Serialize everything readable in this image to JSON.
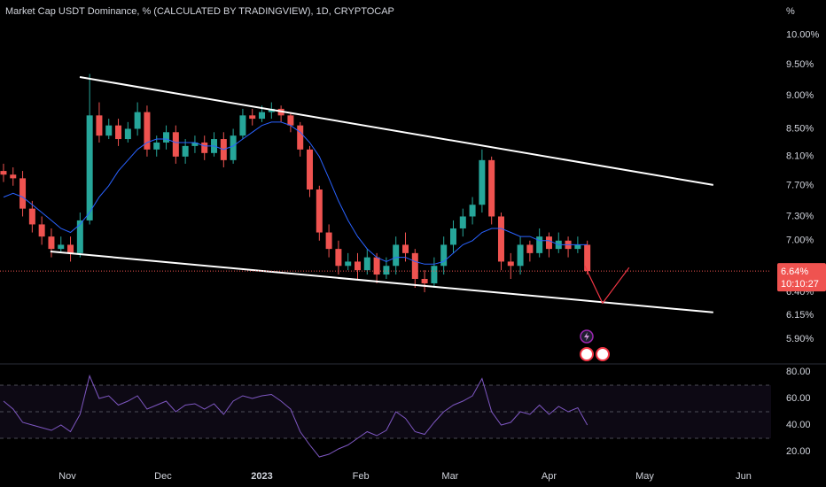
{
  "chart_data": [
    {
      "type": "candlestick",
      "title": "Market Cap USDT Dominance, % (CALCULATED BY TRADINGVIEW), 1D, CRYPTOCAP",
      "y_unit": "%",
      "log_scale": true,
      "up_color": "#26a69a",
      "down_color": "#ef5350",
      "x": [
        -20,
        -17,
        -14,
        -11,
        -8,
        -5,
        -2,
        1,
        4,
        7,
        10,
        13,
        16,
        19,
        22,
        25,
        28,
        31,
        34,
        37,
        40,
        43,
        46,
        49,
        52,
        55,
        58,
        61,
        64,
        67,
        70,
        73,
        76,
        79,
        82,
        85,
        88,
        91,
        94,
        97,
        100,
        103,
        106,
        109,
        112,
        115,
        118,
        121,
        124,
        127,
        130,
        133,
        136,
        139,
        142,
        145,
        148,
        151,
        154,
        157,
        160,
        163
      ],
      "open": [
        7.9,
        7.85,
        7.8,
        7.4,
        7.2,
        7.05,
        6.9,
        6.95,
        6.85,
        7.25,
        8.7,
        8.4,
        8.55,
        8.35,
        8.5,
        8.75,
        8.2,
        8.3,
        8.45,
        8.1,
        8.25,
        8.3,
        8.15,
        8.35,
        8.05,
        8.4,
        8.7,
        8.65,
        8.75,
        8.8,
        8.7,
        8.55,
        8.2,
        7.65,
        7.1,
        6.9,
        6.7,
        6.75,
        6.65,
        6.8,
        6.6,
        6.7,
        6.95,
        6.85,
        6.55,
        6.5,
        6.7,
        6.95,
        7.15,
        7.3,
        7.45,
        8.05,
        7.3,
        6.75,
        6.7,
        6.95,
        6.85,
        7.05,
        6.9,
        7.0,
        6.9,
        6.95
      ],
      "high": [
        8.0,
        7.95,
        7.9,
        7.5,
        7.3,
        7.15,
        7.05,
        7.05,
        7.35,
        9.35,
        8.9,
        8.65,
        8.65,
        8.6,
        8.9,
        8.85,
        8.4,
        8.55,
        8.55,
        8.35,
        8.4,
        8.4,
        8.45,
        8.45,
        8.5,
        8.8,
        8.8,
        8.85,
        8.9,
        8.85,
        8.75,
        8.6,
        8.25,
        7.7,
        7.2,
        7.0,
        6.85,
        6.85,
        6.9,
        6.85,
        6.8,
        7.05,
        7.1,
        6.9,
        6.65,
        6.8,
        7.05,
        7.25,
        7.4,
        7.55,
        8.2,
        8.1,
        7.35,
        6.85,
        7.05,
        7.0,
        7.15,
        7.1,
        7.1,
        7.05,
        7.05,
        7.0
      ],
      "low": [
        7.75,
        7.7,
        7.3,
        7.1,
        6.95,
        6.8,
        6.85,
        6.75,
        6.8,
        7.2,
        8.3,
        8.35,
        8.25,
        8.3,
        8.4,
        8.1,
        8.1,
        8.2,
        8.0,
        8.0,
        8.15,
        8.05,
        8.1,
        7.95,
        8.0,
        8.35,
        8.55,
        8.6,
        8.65,
        8.6,
        8.45,
        8.1,
        7.55,
        7.0,
        6.8,
        6.6,
        6.65,
        6.55,
        6.6,
        6.5,
        6.55,
        6.6,
        6.75,
        6.45,
        6.4,
        6.45,
        6.6,
        6.85,
        7.05,
        7.2,
        7.35,
        7.2,
        6.65,
        6.55,
        6.6,
        6.75,
        6.8,
        6.8,
        6.85,
        6.8,
        6.85,
        6.6
      ],
      "close": [
        7.85,
        7.8,
        7.4,
        7.2,
        7.05,
        6.9,
        6.95,
        6.85,
        7.25,
        8.7,
        8.4,
        8.55,
        8.35,
        8.5,
        8.75,
        8.2,
        8.3,
        8.45,
        8.1,
        8.25,
        8.3,
        8.15,
        8.35,
        8.05,
        8.4,
        8.7,
        8.65,
        8.75,
        8.8,
        8.7,
        8.55,
        8.2,
        7.65,
        7.1,
        6.9,
        6.7,
        6.75,
        6.65,
        6.8,
        6.6,
        6.7,
        6.95,
        6.85,
        6.55,
        6.5,
        6.7,
        6.95,
        7.15,
        7.3,
        7.45,
        8.05,
        7.3,
        6.75,
        6.7,
        6.95,
        6.85,
        7.05,
        6.9,
        7.0,
        6.9,
        6.95,
        6.64
      ],
      "ma": {
        "color": "#2962ff",
        "values": [
          7.55,
          7.6,
          7.55,
          7.45,
          7.35,
          7.25,
          7.15,
          7.1,
          7.2,
          7.35,
          7.55,
          7.7,
          7.9,
          8.05,
          8.2,
          8.3,
          8.35,
          8.35,
          8.3,
          8.3,
          8.3,
          8.25,
          8.25,
          8.2,
          8.25,
          8.35,
          8.45,
          8.55,
          8.6,
          8.6,
          8.55,
          8.45,
          8.3,
          8.1,
          7.8,
          7.5,
          7.25,
          7.05,
          6.9,
          6.8,
          6.75,
          6.8,
          6.8,
          6.75,
          6.72,
          6.72,
          6.75,
          6.85,
          6.95,
          7.0,
          7.1,
          7.15,
          7.15,
          7.1,
          7.05,
          7.05,
          7.0,
          7.0,
          6.95,
          6.95,
          6.95,
          6.95
        ]
      },
      "trendlines": [
        {
          "color": "#ffffff",
          "x": [
            3.9,
            202.5
          ],
          "y": [
            9.3,
            7.71
          ]
        },
        {
          "color": "#ffffff",
          "x": [
            -5.3,
            202.5
          ],
          "y": [
            6.87,
            6.18
          ]
        }
      ],
      "projection": {
        "color": "#f23645",
        "x": [
          162.2,
          167.8,
          176.1
        ],
        "y": [
          6.7,
          6.28,
          6.68
        ]
      },
      "last_value": 6.64,
      "last_value_label": "6.64%",
      "countdown": "10:10:27",
      "xlim": [
        -21.1,
        220.6
      ],
      "ylim": [
        5.66,
        10.63
      ],
      "yticks": [
        {
          "value": 10,
          "label": "10.00%"
        },
        {
          "value": 9.5,
          "label": "9.50%"
        },
        {
          "value": 9,
          "label": "9.00%"
        },
        {
          "value": 8.5,
          "label": "8.50%"
        },
        {
          "value": 8.1,
          "label": "8.10%"
        },
        {
          "value": 7.7,
          "label": "7.70%"
        },
        {
          "value": 7.3,
          "label": "7.30%"
        },
        {
          "value": 7,
          "label": "7.00%"
        },
        {
          "value": 6.4,
          "label": "6.40%"
        },
        {
          "value": 6.15,
          "label": "6.15%"
        },
        {
          "value": 5.9,
          "label": "5.90%"
        }
      ]
    },
    {
      "type": "line",
      "color": "#7e57c2",
      "x": [
        -20,
        -17,
        -14,
        -11,
        -8,
        -5,
        -2,
        1,
        4,
        7,
        10,
        13,
        16,
        19,
        22,
        25,
        28,
        31,
        34,
        37,
        40,
        43,
        46,
        49,
        52,
        55,
        58,
        61,
        64,
        67,
        70,
        73,
        76,
        79,
        82,
        85,
        88,
        91,
        94,
        97,
        100,
        103,
        106,
        109,
        112,
        115,
        118,
        121,
        124,
        127,
        130,
        133,
        136,
        139,
        142,
        145,
        148,
        151,
        154,
        157,
        160,
        163
      ],
      "values": [
        58,
        52,
        42,
        40,
        38,
        36,
        40,
        35,
        48,
        77,
        60,
        62,
        55,
        58,
        62,
        52,
        55,
        58,
        50,
        55,
        56,
        52,
        56,
        48,
        58,
        62,
        60,
        62,
        63,
        58,
        52,
        35,
        25,
        16,
        18,
        22,
        25,
        30,
        35,
        32,
        36,
        50,
        45,
        35,
        33,
        42,
        50,
        55,
        58,
        62,
        75,
        50,
        40,
        42,
        50,
        48,
        55,
        48,
        54,
        50,
        53,
        40
      ],
      "levels": [
        70,
        50,
        30
      ],
      "xlim": [
        -21.1,
        220.6
      ],
      "ylim": [
        10,
        85.33
      ],
      "yticks": [
        {
          "value": 80,
          "label": "80.00"
        },
        {
          "value": 60,
          "label": "60.00"
        },
        {
          "value": 40,
          "label": "40.00"
        },
        {
          "value": 20,
          "label": "20.00"
        }
      ],
      "xticks": [
        {
          "value": 0,
          "label": "Nov"
        },
        {
          "value": 30,
          "label": "Dec"
        },
        {
          "value": 61,
          "label": "2023"
        },
        {
          "value": 92,
          "label": "Feb"
        },
        {
          "value": 120,
          "label": "Mar"
        },
        {
          "value": 151,
          "label": "Apr"
        },
        {
          "value": 181,
          "label": "May"
        },
        {
          "value": 212,
          "label": "Jun"
        }
      ]
    }
  ]
}
